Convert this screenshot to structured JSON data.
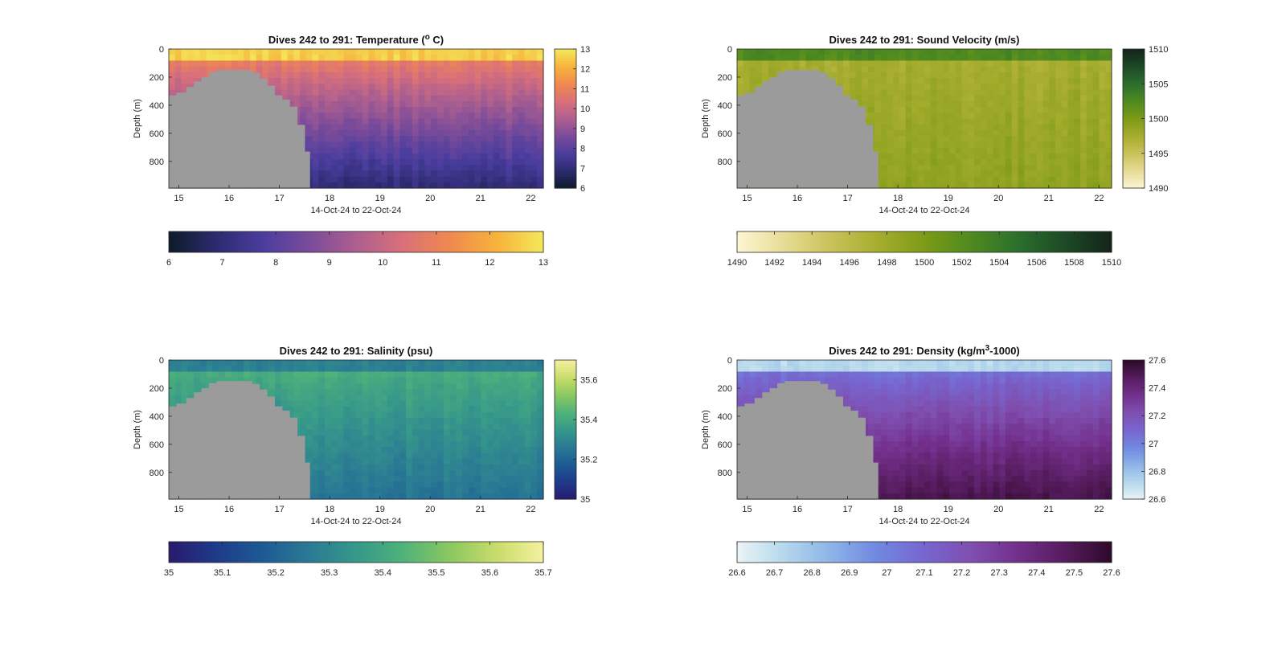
{
  "chart_data": [
    {
      "type": "heatmap",
      "title_main": "Dives 242 to 291: Temperature (",
      "title_sup": "o",
      "title_end": " C)",
      "ylabel": "Depth (m)",
      "xlabel": "14-Oct-24 to 22-Oct-24",
      "x_ticks": [
        "15",
        "16",
        "17",
        "18",
        "19",
        "20",
        "21",
        "22"
      ],
      "x_range": [
        14.8,
        22.25
      ],
      "y_ticks": [
        "0",
        "200",
        "400",
        "600",
        "800"
      ],
      "y_range": [
        0,
        990
      ],
      "colormap": [
        "#0d1b2a",
        "#2c2a6e",
        "#4a3d9e",
        "#7a4b9a",
        "#ad5f8f",
        "#d9707a",
        "#f0894f",
        "#f7b23c",
        "#f4e85a"
      ],
      "colorbar_ticks": [
        "6",
        "7",
        "8",
        "9",
        "10",
        "11",
        "12",
        "13"
      ],
      "clim": [
        6,
        13
      ],
      "vertical_colorbar_ticks": [
        "6",
        "7",
        "8",
        "9",
        "10",
        "11",
        "12",
        "13"
      ],
      "surface_value": 12.6,
      "mixed_layer_depth_m": 80,
      "thermocline_value": 11.0,
      "deep_value": 7.0
    },
    {
      "type": "heatmap",
      "title_main": "Dives 242 to 291: Sound Velocity (m/s)",
      "title_sup": "",
      "title_end": "",
      "ylabel": "Depth (m)",
      "xlabel": "14-Oct-24 to 22-Oct-24",
      "x_ticks": [
        "15",
        "16",
        "17",
        "18",
        "19",
        "20",
        "21",
        "22"
      ],
      "x_range": [
        14.8,
        22.25
      ],
      "y_ticks": [
        "0",
        "200",
        "400",
        "600",
        "800"
      ],
      "y_range": [
        0,
        990
      ],
      "colormap": [
        "#fcf6d4",
        "#e7dc96",
        "#c9c25a",
        "#a7ad2e",
        "#7e9b17",
        "#4f8a1f",
        "#2b6f2c",
        "#1d4a26",
        "#14241a"
      ],
      "colorbar_ticks": [
        "1490",
        "1492",
        "1494",
        "1496",
        "1498",
        "1500",
        "1502",
        "1504",
        "1506",
        "1508",
        "1510"
      ],
      "clim": [
        1490,
        1510
      ],
      "vertical_colorbar_ticks": [
        "1490",
        "1495",
        "1500",
        "1505",
        "1510"
      ],
      "surface_value": 1502.5,
      "mixed_layer_depth_m": 80,
      "thermocline_value": 1497.5,
      "deep_value": 1499.0
    },
    {
      "type": "heatmap",
      "title_main": "Dives 242 to 291: Salinity (psu)",
      "title_sup": "",
      "title_end": "",
      "ylabel": "Depth (m)",
      "xlabel": "14-Oct-24 to 22-Oct-24",
      "x_ticks": [
        "15",
        "16",
        "17",
        "18",
        "19",
        "20",
        "21",
        "22"
      ],
      "x_range": [
        14.8,
        22.25
      ],
      "y_ticks": [
        "0",
        "200",
        "400",
        "600",
        "800"
      ],
      "y_range": [
        0,
        990
      ],
      "colormap": [
        "#2a1a6e",
        "#1f3a8a",
        "#1d5a94",
        "#2a7a94",
        "#36988a",
        "#4fb27a",
        "#8ac860",
        "#c8dc6a",
        "#f5f0a0"
      ],
      "colorbar_ticks": [
        "35",
        "35.1",
        "35.2",
        "35.3",
        "35.4",
        "35.5",
        "35.6",
        "35.7"
      ],
      "clim": [
        35,
        35.7
      ],
      "vertical_colorbar_ticks": [
        "35",
        "35.2",
        "35.4",
        "35.6"
      ],
      "surface_value": 35.28,
      "mixed_layer_depth_m": 80,
      "thermocline_value": 35.42,
      "deep_value": 35.24
    },
    {
      "type": "heatmap",
      "title_main": "Dives 242 to 291: Density (kg/m",
      "title_sup": "3",
      "title_end": "-1000)",
      "ylabel": "Depth (m)",
      "xlabel": "14-Oct-24 to 22-Oct-24",
      "x_ticks": [
        "15",
        "16",
        "17",
        "18",
        "19",
        "20",
        "21",
        "22"
      ],
      "x_range": [
        14.8,
        22.25
      ],
      "y_ticks": [
        "0",
        "200",
        "400",
        "600",
        "800"
      ],
      "y_range": [
        0,
        990
      ],
      "colormap": [
        "#eaf4f6",
        "#b5d8ec",
        "#8db4e8",
        "#7088e0",
        "#7766cf",
        "#7f4fb0",
        "#73308c",
        "#561c5e",
        "#2d0a2a"
      ],
      "colorbar_ticks": [
        "26.6",
        "26.7",
        "26.8",
        "26.9",
        "27",
        "27.1",
        "27.2",
        "27.3",
        "27.4",
        "27.5",
        "27.6"
      ],
      "clim": [
        26.6,
        27.6
      ],
      "vertical_colorbar_ticks": [
        "26.6",
        "26.8",
        "27",
        "27.2",
        "27.4",
        "27.6"
      ],
      "surface_value": 26.72,
      "mixed_layer_depth_m": 80,
      "thermocline_value": 27.05,
      "deep_value": 27.52
    }
  ],
  "land_color": "#9b9b9b"
}
